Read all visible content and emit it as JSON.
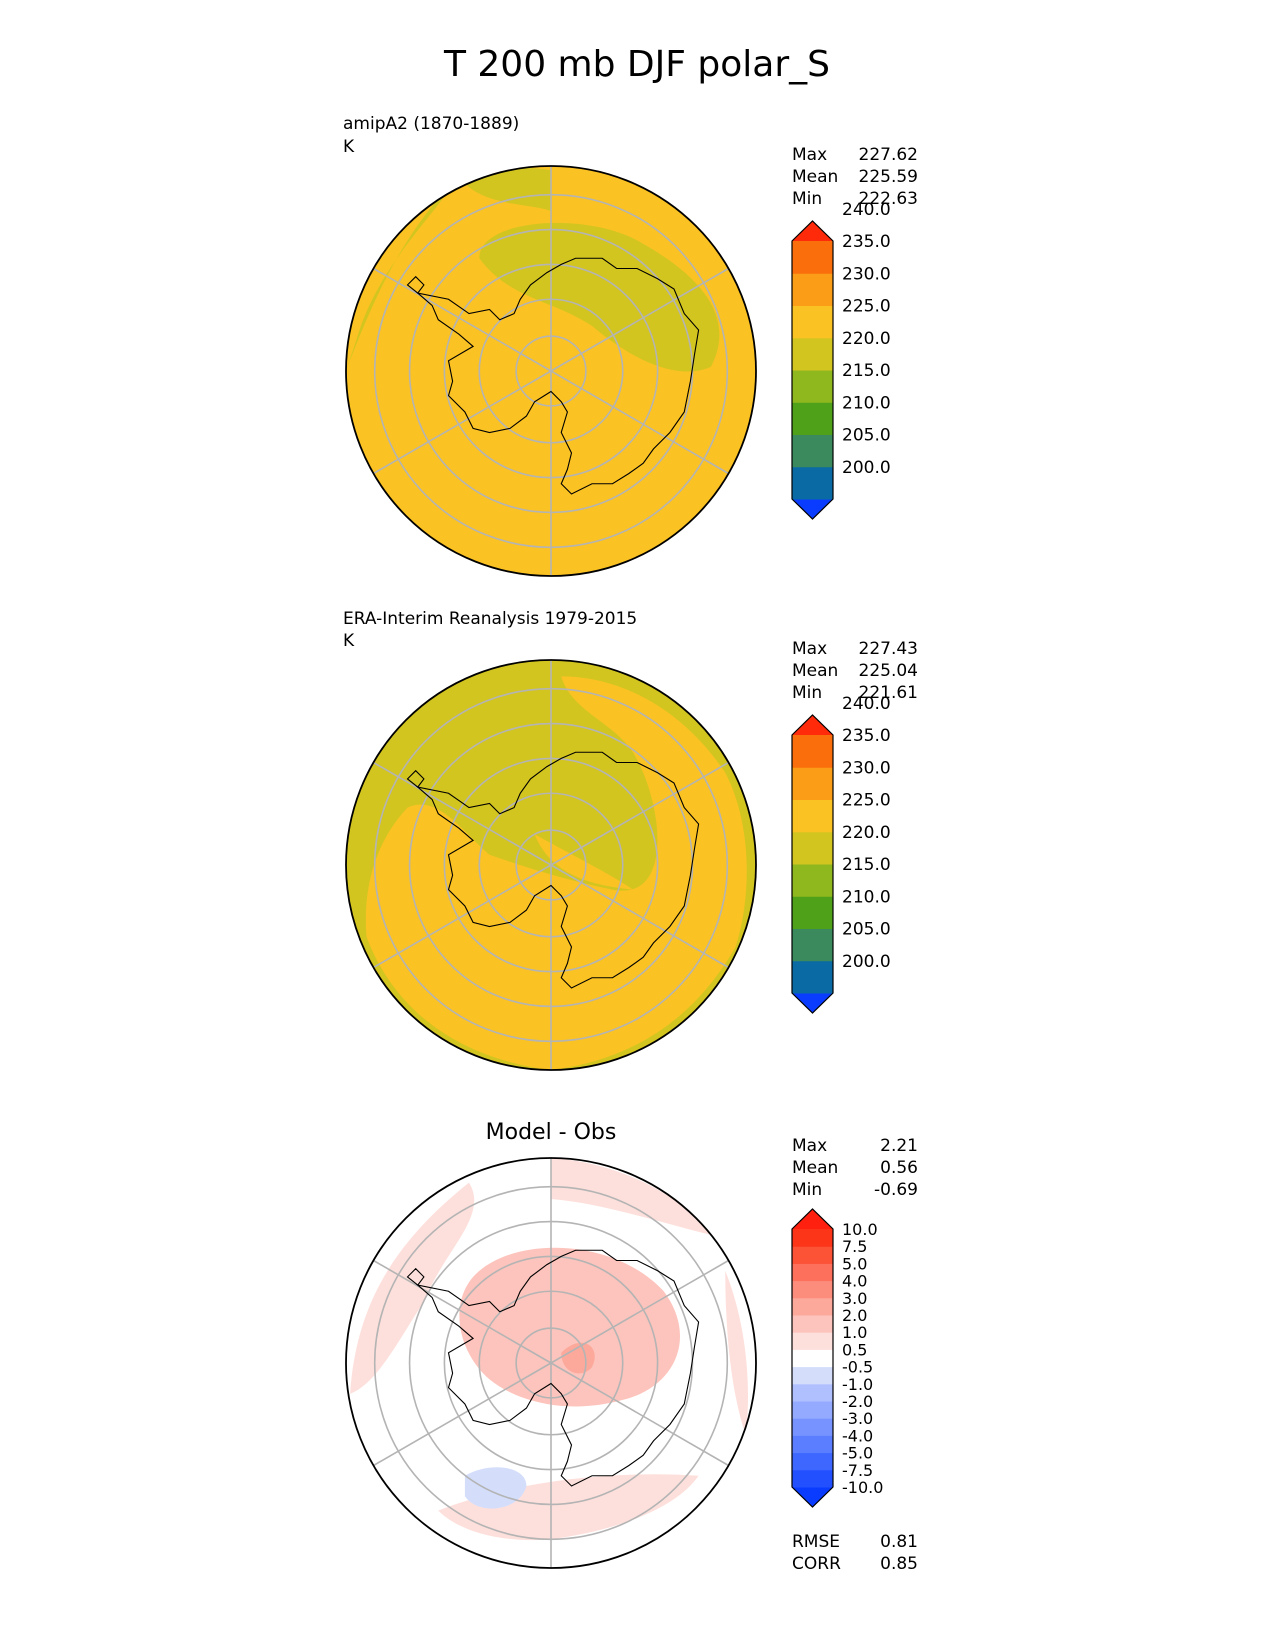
{
  "figure": {
    "title": "T 200 mb DJF polar_S",
    "colors": {
      "background": "#ffffff",
      "grid": "#b4b4b4",
      "coast": "#000000"
    }
  },
  "chart_data": [
    {
      "type": "heatmap",
      "projection": "south-polar-stereographic",
      "title": "amipA2 (1870-1889)",
      "units": "K",
      "stats": [
        {
          "label": "Max",
          "value": "227.62"
        },
        {
          "label": "Mean",
          "value": "225.59"
        },
        {
          "label": "Min",
          "value": "222.63"
        }
      ],
      "colorbar": {
        "levels": [
          "200.0",
          "205.0",
          "210.0",
          "215.0",
          "220.0",
          "225.0",
          "230.0",
          "235.0",
          "240.0"
        ],
        "colors": [
          "#0a3cff",
          "#0a6aa3",
          "#3a8a5e",
          "#4fa11a",
          "#8fb71e",
          "#d3c520",
          "#fbc223",
          "#fb9d16",
          "#fb6e0c",
          "#ff2a0a"
        ],
        "extend": "both"
      },
      "field": {
        "background": "#fbc223",
        "regions": [
          "#d3c520",
          "#d3c520",
          "#d3c520"
        ]
      }
    },
    {
      "type": "heatmap",
      "projection": "south-polar-stereographic",
      "title": "ERA-Interim Reanalysis 1979-2015",
      "units": "K",
      "stats": [
        {
          "label": "Max",
          "value": "227.43"
        },
        {
          "label": "Mean",
          "value": "225.04"
        },
        {
          "label": "Min",
          "value": "221.61"
        }
      ],
      "colorbar": {
        "levels": [
          "200.0",
          "205.0",
          "210.0",
          "215.0",
          "220.0",
          "225.0",
          "230.0",
          "235.0",
          "240.0"
        ],
        "colors": [
          "#0a3cff",
          "#0a6aa3",
          "#3a8a5e",
          "#4fa11a",
          "#8fb71e",
          "#d3c520",
          "#fbc223",
          "#fb9d16",
          "#fb6e0c",
          "#ff2a0a"
        ],
        "extend": "both"
      },
      "field": {
        "background": "#d3c520",
        "regions": [
          "#fbc223",
          "#fbc223"
        ]
      }
    },
    {
      "type": "heatmap",
      "projection": "south-polar-stereographic",
      "title": "Model - Obs",
      "units": "",
      "stats": [
        {
          "label": "Max",
          "value": "2.21"
        },
        {
          "label": "Mean",
          "value": "0.56"
        },
        {
          "label": "Min",
          "value": "-0.69"
        }
      ],
      "colorbar": {
        "levels": [
          "-10.0",
          "-7.5",
          "-5.0",
          "-4.0",
          "-3.0",
          "-2.0",
          "-1.0",
          "-0.5",
          "0.5",
          "1.0",
          "2.0",
          "3.0",
          "4.0",
          "5.0",
          "7.5",
          "10.0"
        ],
        "colors": [
          "#0a3cff",
          "#2250ff",
          "#3e67ff",
          "#5a7eff",
          "#7693ff",
          "#94aaff",
          "#b0c0ff",
          "#d4defb",
          "#ffffff",
          "#fde0dc",
          "#fcc4bc",
          "#fca99c",
          "#fc8d7c",
          "#fc705c",
          "#fc5236",
          "#fc3418",
          "#ff2010"
        ],
        "extend": "both"
      },
      "field": {
        "background": "#ffffff",
        "regions": [
          "#fde0dc",
          "#fde0dc",
          "#fde0dc",
          "#fcc4bc",
          "#fca99c",
          "#d4defb"
        ]
      },
      "metrics": [
        {
          "label": "RMSE",
          "value": "0.81"
        },
        {
          "label": "CORR",
          "value": "0.85"
        }
      ]
    }
  ]
}
